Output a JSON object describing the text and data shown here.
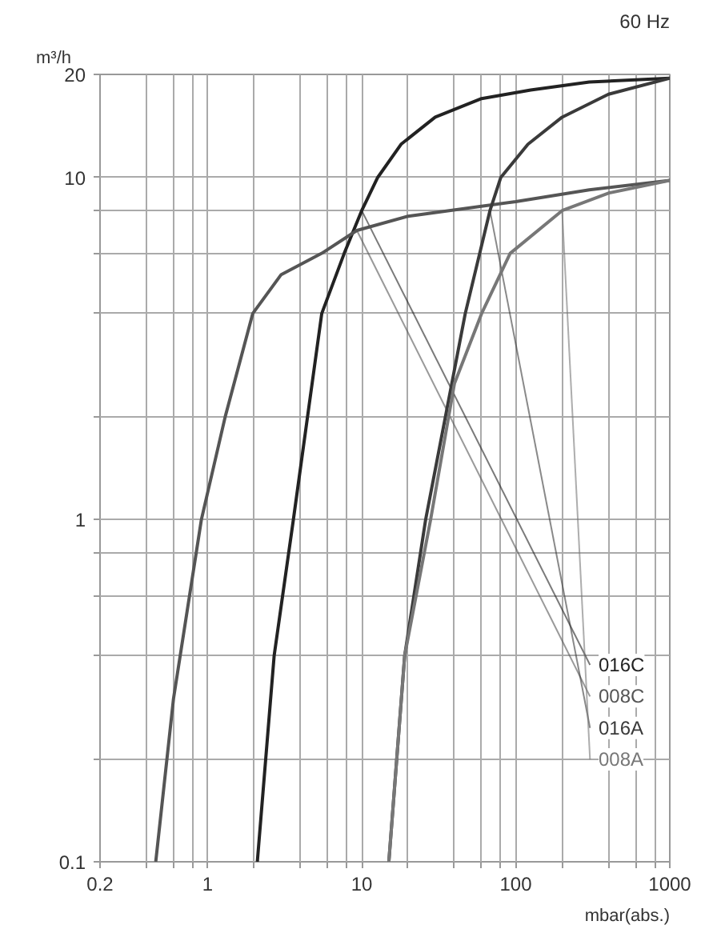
{
  "chart_data": {
    "type": "line",
    "title": "60 Hz",
    "xlabel": "mbar(abs.)",
    "ylabel": "m³/h",
    "log": "xy",
    "grid": true,
    "marker": "none",
    "line_style": "solid",
    "xlim": [
      0.2,
      1000
    ],
    "ylim": [
      0.1,
      20
    ],
    "xticks": [
      0.2,
      {
        "value": 0.4,
        "label": null
      },
      {
        "value": 0.6,
        "label": null
      },
      {
        "value": 0.8,
        "label": null
      },
      1,
      {
        "value": 2,
        "label": null
      },
      {
        "value": 4,
        "label": null
      },
      {
        "value": 6,
        "label": null
      },
      {
        "value": 8,
        "label": null
      },
      10,
      {
        "value": 20,
        "label": null
      },
      {
        "value": 40,
        "label": null
      },
      {
        "value": 60,
        "label": null
      },
      {
        "value": 80,
        "label": null
      },
      100,
      {
        "value": 200,
        "label": null
      },
      {
        "value": 400,
        "label": null
      },
      {
        "value": 600,
        "label": null
      },
      {
        "value": 800,
        "label": null
      },
      1000
    ],
    "yticks": [
      0.1,
      {
        "value": 0.2,
        "label": null
      },
      {
        "value": 0.4,
        "label": null
      },
      {
        "value": 0.6,
        "label": null
      },
      {
        "value": 0.8,
        "label": null
      },
      1,
      {
        "value": 2,
        "label": null
      },
      {
        "value": 4,
        "label": null
      },
      {
        "value": 6,
        "label": null
      },
      {
        "value": 8,
        "label": null
      },
      10,
      20
    ],
    "series": [
      {
        "name": "016C",
        "color": "#222222",
        "x": [
          2.1,
          2.7,
          3.6,
          5.5,
          7.7,
          10,
          12.7,
          18,
          30,
          60,
          125,
          300,
          1000
        ],
        "values": [
          0.1,
          0.4,
          1,
          4,
          6,
          8,
          10,
          12.5,
          15,
          17,
          18,
          19,
          19.5
        ]
      },
      {
        "name": "008C",
        "color": "#555555",
        "x": [
          0.46,
          0.6,
          0.91,
          1.3,
          1.96,
          3,
          5.5,
          9.3,
          20,
          100,
          300,
          1000
        ],
        "values": [
          0.1,
          0.3,
          1,
          2,
          4,
          5.2,
          6,
          7,
          7.7,
          8.5,
          9.2,
          9.8
        ]
      },
      {
        "name": "016A",
        "color": "#3a3a3a",
        "x": [
          15,
          19,
          26,
          47,
          68,
          80,
          120,
          200,
          400,
          1000
        ],
        "values": [
          0.1,
          0.4,
          1,
          4,
          8,
          10,
          12.5,
          15,
          17.5,
          19.5
        ]
      },
      {
        "name": "008A",
        "color": "#777777",
        "x": [
          15,
          19,
          28,
          40,
          60,
          92,
          200,
          400,
          1000
        ],
        "values": [
          0.1,
          0.4,
          1,
          2.5,
          4,
          6,
          8,
          9,
          9.8
        ]
      }
    ]
  }
}
